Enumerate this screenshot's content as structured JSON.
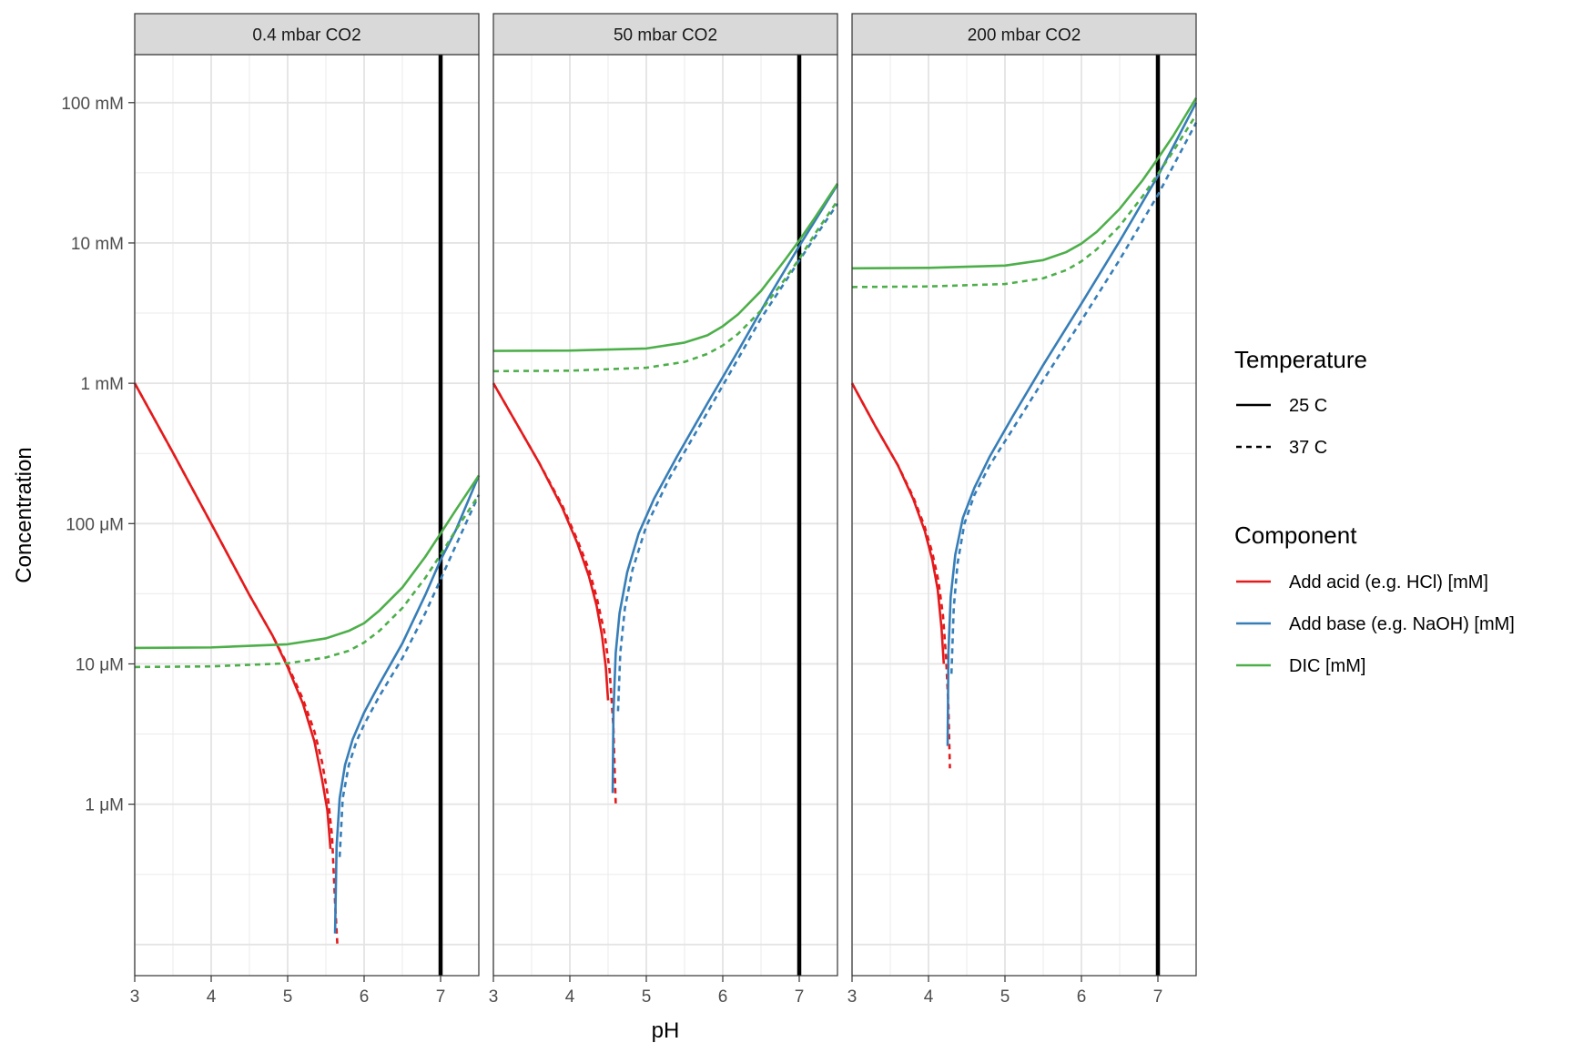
{
  "chart_data": {
    "type": "line",
    "xlabel": "pH",
    "ylabel": "Concentration",
    "y_scale": "log10",
    "y_unit": "mM",
    "xlim": [
      3,
      7.5
    ],
    "ylim": [
      6e-05,
      220
    ],
    "x_ticks": [
      3,
      4,
      5,
      6,
      7
    ],
    "x_tick_labels": [
      "3",
      "4",
      "5",
      "6",
      "7"
    ],
    "y_ticks": [
      100,
      10,
      1,
      0.1,
      0.01,
      0.001
    ],
    "y_tick_labels": [
      "100 mM",
      "10 mM",
      "1 mM",
      "100 μM",
      "10 μM",
      "1 μM"
    ],
    "grid": true,
    "reference_line_x": 7,
    "colors": {
      "acid": "#e41a1c",
      "base": "#377eb8",
      "dic": "#4daf4a",
      "reference": "#000000",
      "strip_fill": "#d9d9d9"
    },
    "legend": {
      "position": "right",
      "temperature": {
        "title": "Temperature",
        "entries": [
          "25 C",
          "37 C"
        ]
      },
      "component": {
        "title": "Component",
        "entries": [
          "Add acid (e.g. HCl) [mM]",
          "Add base (e.g. NaOH) [mM]",
          "DIC [mM]"
        ]
      }
    },
    "panels": [
      {
        "title": "0.4 mbar CO2",
        "series": [
          {
            "name": "Add acid (e.g. HCl) [mM]",
            "temperature": "25 C",
            "x": [
              3.0,
              3.5,
              4.0,
              4.5,
              4.8,
              5.0,
              5.2,
              5.35,
              5.45,
              5.52,
              5.56
            ],
            "y": [
              1.0,
              0.32,
              0.1,
              0.031,
              0.016,
              0.0095,
              0.0052,
              0.0028,
              0.0015,
              0.0009,
              0.00048
            ]
          },
          {
            "name": "Add acid (e.g. HCl) [mM]",
            "temperature": "37 C",
            "x": [
              3.0,
              3.5,
              4.0,
              4.5,
              4.8,
              5.0,
              5.2,
              5.35,
              5.45,
              5.52,
              5.58,
              5.62,
              5.65
            ],
            "y": [
              1.0,
              0.32,
              0.1,
              0.031,
              0.016,
              0.0098,
              0.0056,
              0.0033,
              0.002,
              0.0012,
              0.0006,
              0.0002,
              0.0001
            ]
          },
          {
            "name": "Add base (e.g. NaOH) [mM]",
            "temperature": "25 C",
            "x": [
              5.62,
              5.64,
              5.68,
              5.75,
              5.85,
              6.0,
              6.2,
              6.5,
              6.8,
              7.0,
              7.2,
              7.5
            ],
            "y": [
              0.00012,
              0.0005,
              0.0011,
              0.0019,
              0.0029,
              0.0045,
              0.0072,
              0.014,
              0.031,
              0.055,
              0.09,
              0.22
            ]
          },
          {
            "name": "Add base (e.g. NaOH) [mM]",
            "temperature": "37 C",
            "x": [
              5.68,
              5.72,
              5.8,
              5.9,
              6.0,
              6.2,
              6.5,
              6.8,
              7.0,
              7.2,
              7.5
            ],
            "y": [
              0.00042,
              0.0011,
              0.0019,
              0.0028,
              0.0037,
              0.0059,
              0.011,
              0.023,
              0.04,
              0.07,
              0.16
            ]
          },
          {
            "name": "DIC [mM]",
            "temperature": "25 C",
            "x": [
              3.0,
              4.0,
              5.0,
              5.5,
              5.8,
              6.0,
              6.2,
              6.5,
              6.8,
              7.0,
              7.2,
              7.5
            ],
            "y": [
              0.013,
              0.0131,
              0.0138,
              0.0152,
              0.0172,
              0.0195,
              0.024,
              0.035,
              0.058,
              0.085,
              0.125,
              0.22
            ]
          },
          {
            "name": "DIC [mM]",
            "temperature": "37 C",
            "x": [
              3.0,
              4.0,
              5.0,
              5.5,
              5.8,
              6.0,
              6.2,
              6.5,
              6.8,
              7.0,
              7.2,
              7.5
            ],
            "y": [
              0.0095,
              0.0096,
              0.0101,
              0.0111,
              0.0124,
              0.0142,
              0.0172,
              0.025,
              0.041,
              0.06,
              0.09,
              0.16
            ]
          }
        ]
      },
      {
        "title": "50 mbar CO2",
        "series": [
          {
            "name": "Add acid (e.g. HCl) [mM]",
            "temperature": "25 C",
            "x": [
              3.0,
              3.3,
              3.6,
              3.9,
              4.1,
              4.25,
              4.35,
              4.42,
              4.47,
              4.5
            ],
            "y": [
              1.0,
              0.52,
              0.27,
              0.13,
              0.072,
              0.042,
              0.026,
              0.016,
              0.0095,
              0.0055
            ]
          },
          {
            "name": "Add acid (e.g. HCl) [mM]",
            "temperature": "37 C",
            "x": [
              3.0,
              3.3,
              3.6,
              3.9,
              4.1,
              4.25,
              4.35,
              4.45,
              4.52,
              4.57,
              4.6
            ],
            "y": [
              1.0,
              0.52,
              0.27,
              0.135,
              0.076,
              0.047,
              0.03,
              0.017,
              0.009,
              0.0035,
              0.001
            ]
          },
          {
            "name": "Add base (e.g. NaOH) [mM]",
            "temperature": "25 C",
            "x": [
              4.56,
              4.57,
              4.6,
              4.65,
              4.75,
              4.9,
              5.1,
              5.4,
              5.8,
              6.2,
              6.6,
              7.0,
              7.5
            ],
            "y": [
              0.0012,
              0.0045,
              0.012,
              0.023,
              0.045,
              0.085,
              0.15,
              0.3,
              0.72,
              1.7,
              4.1,
              9.5,
              26.0
            ]
          },
          {
            "name": "Add base (e.g. NaOH) [mM]",
            "temperature": "37 C",
            "x": [
              4.63,
              4.66,
              4.72,
              4.82,
              5.0,
              5.3,
              5.7,
              6.1,
              6.5,
              7.0,
              7.5
            ],
            "y": [
              0.0046,
              0.012,
              0.025,
              0.047,
              0.096,
              0.21,
              0.5,
              1.2,
              2.9,
              7.5,
              19.0
            ]
          },
          {
            "name": "DIC [mM]",
            "temperature": "25 C",
            "x": [
              3.0,
              4.0,
              5.0,
              5.5,
              5.8,
              6.0,
              6.2,
              6.5,
              6.8,
              7.0,
              7.2,
              7.5
            ],
            "y": [
              1.7,
              1.71,
              1.77,
              1.95,
              2.2,
              2.55,
              3.1,
              4.55,
              7.4,
              10.4,
              15.0,
              26.5
            ]
          },
          {
            "name": "DIC [mM]",
            "temperature": "37 C",
            "x": [
              3.0,
              4.0,
              5.0,
              5.5,
              5.8,
              6.0,
              6.2,
              6.5,
              6.8,
              7.0,
              7.2,
              7.5
            ],
            "y": [
              1.22,
              1.23,
              1.29,
              1.42,
              1.62,
              1.86,
              2.25,
              3.3,
              5.4,
              7.7,
              11.5,
              20.0
            ]
          }
        ]
      },
      {
        "title": "200 mbar CO2",
        "series": [
          {
            "name": "Add acid (e.g. HCl) [mM]",
            "temperature": "25 C",
            "x": [
              3.0,
              3.3,
              3.6,
              3.8,
              3.95,
              4.05,
              4.12,
              4.17,
              4.2
            ],
            "y": [
              1.0,
              0.5,
              0.26,
              0.15,
              0.089,
              0.055,
              0.034,
              0.018,
              0.01
            ]
          },
          {
            "name": "Add acid (e.g. HCl) [mM]",
            "temperature": "37 C",
            "x": [
              3.0,
              3.3,
              3.6,
              3.8,
              3.95,
              4.05,
              4.13,
              4.19,
              4.23,
              4.26,
              4.28
            ],
            "y": [
              1.0,
              0.5,
              0.26,
              0.155,
              0.095,
              0.062,
              0.039,
              0.022,
              0.011,
              0.005,
              0.0018
            ]
          },
          {
            "name": "Add base (e.g. NaOH) [mM]",
            "temperature": "25 C",
            "x": [
              4.25,
              4.26,
              4.29,
              4.35,
              4.45,
              4.6,
              4.8,
              5.1,
              5.5,
              6.0,
              6.5,
              7.0,
              7.5
            ],
            "y": [
              0.0026,
              0.012,
              0.03,
              0.06,
              0.11,
              0.18,
              0.3,
              0.58,
              1.35,
              3.7,
              10.3,
              30.0,
              100.0
            ]
          },
          {
            "name": "Add base (e.g. NaOH) [mM]",
            "temperature": "37 C",
            "x": [
              4.3,
              4.33,
              4.38,
              4.47,
              4.6,
              4.8,
              5.1,
              5.5,
              6.0,
              6.5,
              7.0,
              7.5
            ],
            "y": [
              0.0085,
              0.025,
              0.052,
              0.1,
              0.16,
              0.26,
              0.47,
              1.05,
              2.8,
              7.6,
              22.0,
              72.0
            ]
          },
          {
            "name": "DIC [mM]",
            "temperature": "25 C",
            "x": [
              3.0,
              4.0,
              5.0,
              5.5,
              5.8,
              6.0,
              6.2,
              6.5,
              6.8,
              7.0,
              7.2,
              7.5
            ],
            "y": [
              6.6,
              6.65,
              6.9,
              7.55,
              8.6,
              9.9,
              12.0,
              17.5,
              28.0,
              40.0,
              58.0,
              108.0
            ]
          },
          {
            "name": "DIC [mM]",
            "temperature": "37 C",
            "x": [
              3.0,
              4.0,
              5.0,
              5.5,
              5.8,
              6.0,
              6.2,
              6.5,
              6.8,
              7.0,
              7.2,
              7.5
            ],
            "y": [
              4.85,
              4.9,
              5.1,
              5.6,
              6.4,
              7.4,
              9.0,
              13.2,
              21.5,
              31.0,
              45.0,
              82.0
            ]
          }
        ]
      }
    ]
  }
}
